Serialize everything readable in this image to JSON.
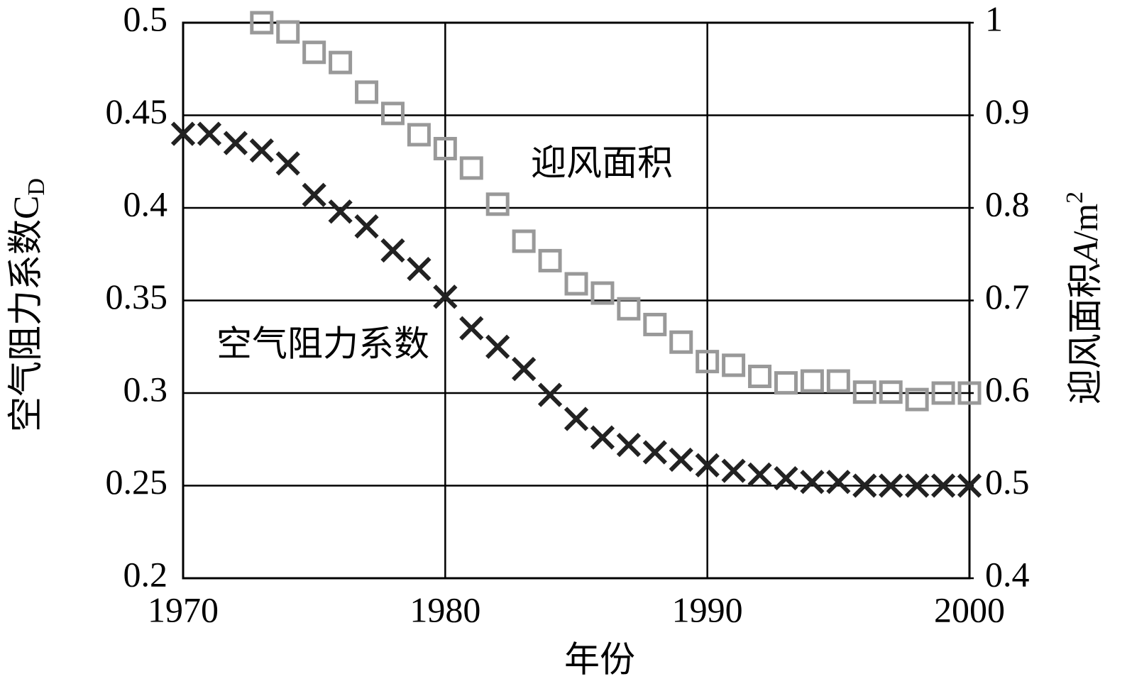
{
  "chart_data": {
    "type": "scatter",
    "xlabel": "年份",
    "ylabel": [
      "空气阻力系数C",
      "D"
    ],
    "y2label": [
      "迎风面积",
      "A",
      "/m",
      "2"
    ],
    "annotations": [
      "迎风面积",
      "空气阻力系数"
    ],
    "x": [
      1970,
      1971,
      1972,
      1973,
      1974,
      1975,
      1976,
      1977,
      1978,
      1979,
      1980,
      1981,
      1982,
      1983,
      1984,
      1985,
      1986,
      1987,
      1988,
      1989,
      1990,
      1991,
      1992,
      1993,
      1994,
      1995,
      1996,
      1997,
      1998,
      1999,
      2000
    ],
    "series": [
      {
        "marker": "x",
        "color": "#222222",
        "axis": "y",
        "values": [
          0.44,
          0.44,
          0.435,
          0.431,
          0.424,
          0.407,
          0.398,
          0.39,
          0.377,
          0.367,
          0.352,
          0.335,
          0.325,
          0.313,
          0.299,
          0.286,
          0.276,
          0.272,
          0.268,
          0.264,
          0.261,
          0.258,
          0.256,
          0.254,
          0.252,
          0.252,
          0.25,
          0.25,
          0.25,
          0.25,
          0.25
        ]
      },
      {
        "marker": "square",
        "color": "#999999",
        "axis": "y2",
        "values": [
          null,
          null,
          null,
          1.0,
          0.99,
          0.968,
          0.957,
          0.925,
          0.902,
          0.879,
          0.864,
          0.843,
          0.804,
          0.764,
          0.743,
          0.718,
          0.708,
          0.691,
          0.674,
          0.655,
          0.634,
          0.63,
          0.618,
          0.611,
          0.613,
          0.613,
          0.601,
          0.601,
          0.593,
          0.6,
          0.6
        ]
      }
    ],
    "xlim": [
      1970,
      2000
    ],
    "xticks": [
      1970,
      1980,
      1990,
      2000
    ],
    "ylim": [
      0.2,
      0.5
    ],
    "yticks": [
      0.2,
      0.25,
      0.3,
      0.35,
      0.4,
      0.45,
      0.5
    ],
    "y2lim": [
      0.4,
      1
    ],
    "y2ticks": [
      0.4,
      0.5,
      0.6,
      0.7,
      0.8,
      0.9,
      1
    ],
    "grid": true
  }
}
